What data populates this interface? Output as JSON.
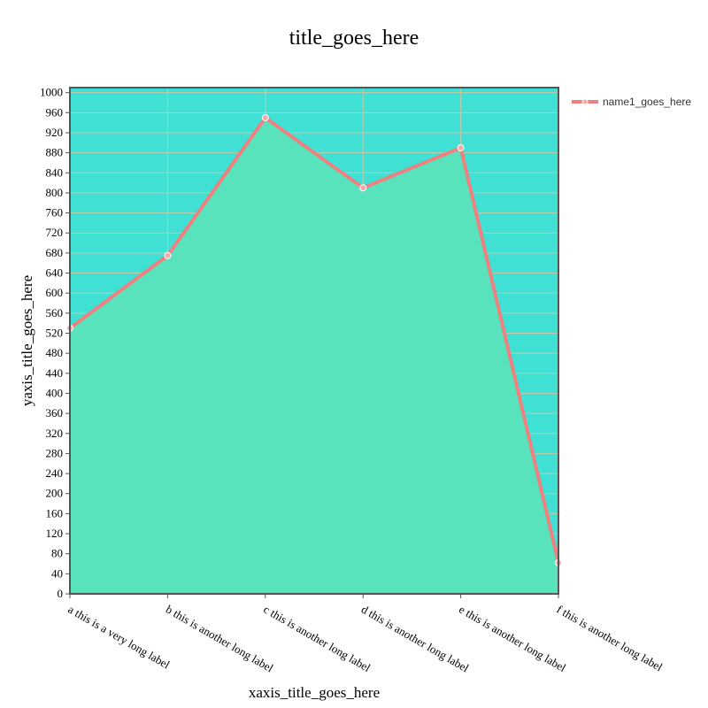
{
  "chart_data": {
    "type": "area",
    "title": "title_goes_here",
    "xlabel": "xaxis_title_goes_here",
    "ylabel": "yaxis_title_goes_here",
    "categories": [
      "a this is a very long label",
      "b this is another long label",
      "c this is another long label",
      "d this is another long label",
      "e this is another long label",
      "f this is another long label"
    ],
    "series": [
      {
        "name": "name1_goes_here",
        "values": [
          530,
          675,
          950,
          810,
          890,
          62
        ]
      }
    ],
    "ylim": [
      0,
      1010
    ],
    "ytick_step": 40,
    "grid": true,
    "legend_position": "top-right",
    "colors": {
      "plot_background": "#40e0d5",
      "area_fill": "#58e3bc",
      "line": "#f08080",
      "marker_fill": "#f7a8a8",
      "marker_stroke": "#ffffff",
      "grid": "#c8c8a8",
      "axis": "#555555"
    }
  }
}
